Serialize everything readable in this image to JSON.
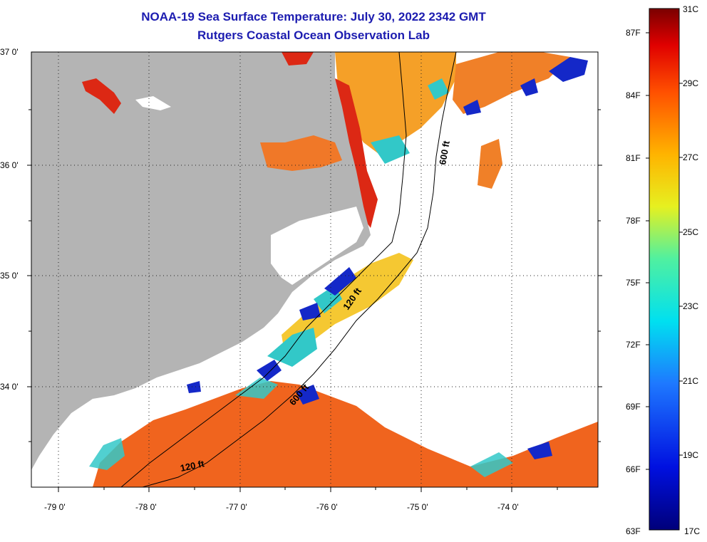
{
  "title": {
    "line1": "NOAA-19 Sea Surface Temperature:  July 30, 2022 2342 GMT",
    "line2": "Rutgers Coastal Ocean Observation Lab"
  },
  "map": {
    "lon_range": [
      -79.3,
      -73.2
    ],
    "lat_range": [
      33.1,
      37.0
    ],
    "x_ticks": [
      {
        "value": -79,
        "label": "-79 0'"
      },
      {
        "value": -78,
        "label": "-78 0'"
      },
      {
        "value": -77,
        "label": "-77 0'"
      },
      {
        "value": -76,
        "label": "-76 0'"
      },
      {
        "value": -75,
        "label": "-75 0'"
      },
      {
        "value": -74,
        "label": "-74 0'"
      }
    ],
    "y_ticks": [
      {
        "value": 37,
        "label": "37 0'"
      },
      {
        "value": 36,
        "label": "36 0'"
      },
      {
        "value": 35,
        "label": "35 0'"
      },
      {
        "value": 34,
        "label": "34 0'"
      }
    ],
    "grid": true,
    "contour_labels": [
      "600 ft",
      "120 ft",
      "600 ft",
      "120 ft"
    ],
    "colors": {
      "land": "#b4b4b4",
      "no_data": "#ffffff",
      "warm": "#f0641e",
      "hot": "#dc2814",
      "mid": "#f5c832",
      "cool": "#32c8c8",
      "cold": "#1428c8"
    }
  },
  "colorbar": {
    "celsius": [
      "31C",
      "29C",
      "27C",
      "25C",
      "23C",
      "21C",
      "19C",
      "17C"
    ],
    "fahrenheit": [
      "87F",
      "84F",
      "81F",
      "78F",
      "75F",
      "72F",
      "69F",
      "66F",
      "63F"
    ]
  }
}
